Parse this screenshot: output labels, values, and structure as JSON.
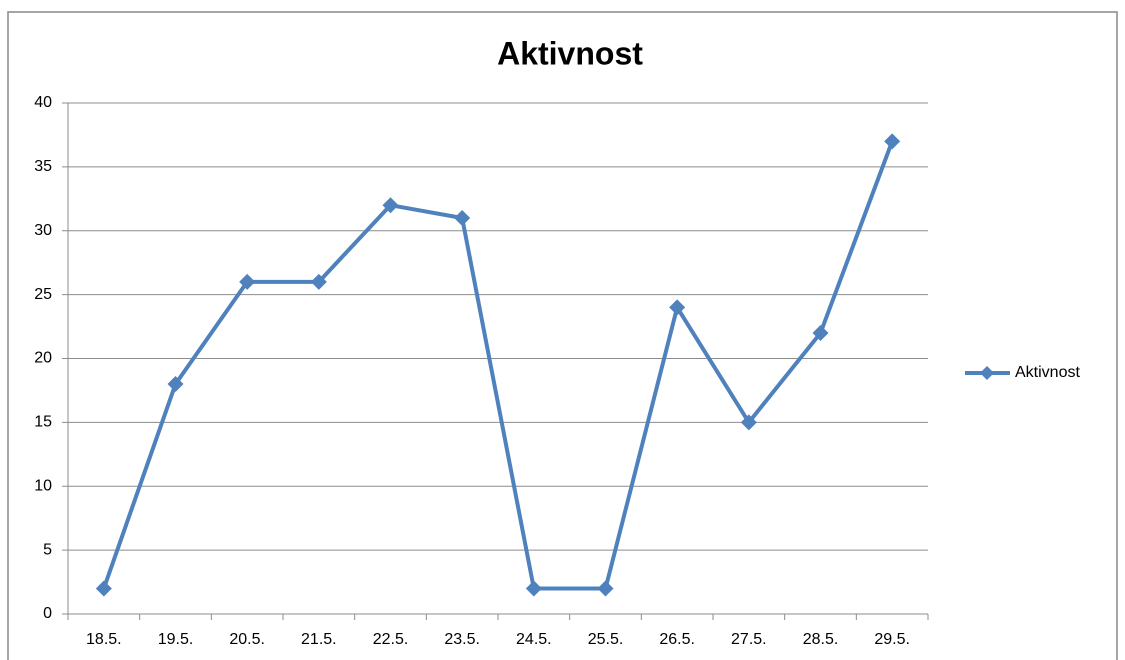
{
  "chart_data": {
    "type": "line",
    "title": "Aktivnost",
    "categories": [
      "18.5.",
      "19.5.",
      "20.5.",
      "21.5.",
      "22.5.",
      "23.5.",
      "24.5.",
      "25.5.",
      "26.5.",
      "27.5.",
      "28.5.",
      "29.5."
    ],
    "series": [
      {
        "name": "Aktivnost",
        "color": "#4f81bd",
        "values": [
          2,
          18,
          26,
          26,
          32,
          31,
          2,
          2,
          24,
          15,
          22,
          37
        ]
      }
    ],
    "ylim": [
      0,
      40
    ],
    "yticks": [
      0,
      5,
      10,
      15,
      20,
      25,
      30,
      35,
      40
    ],
    "grid": true,
    "legend": "right"
  }
}
